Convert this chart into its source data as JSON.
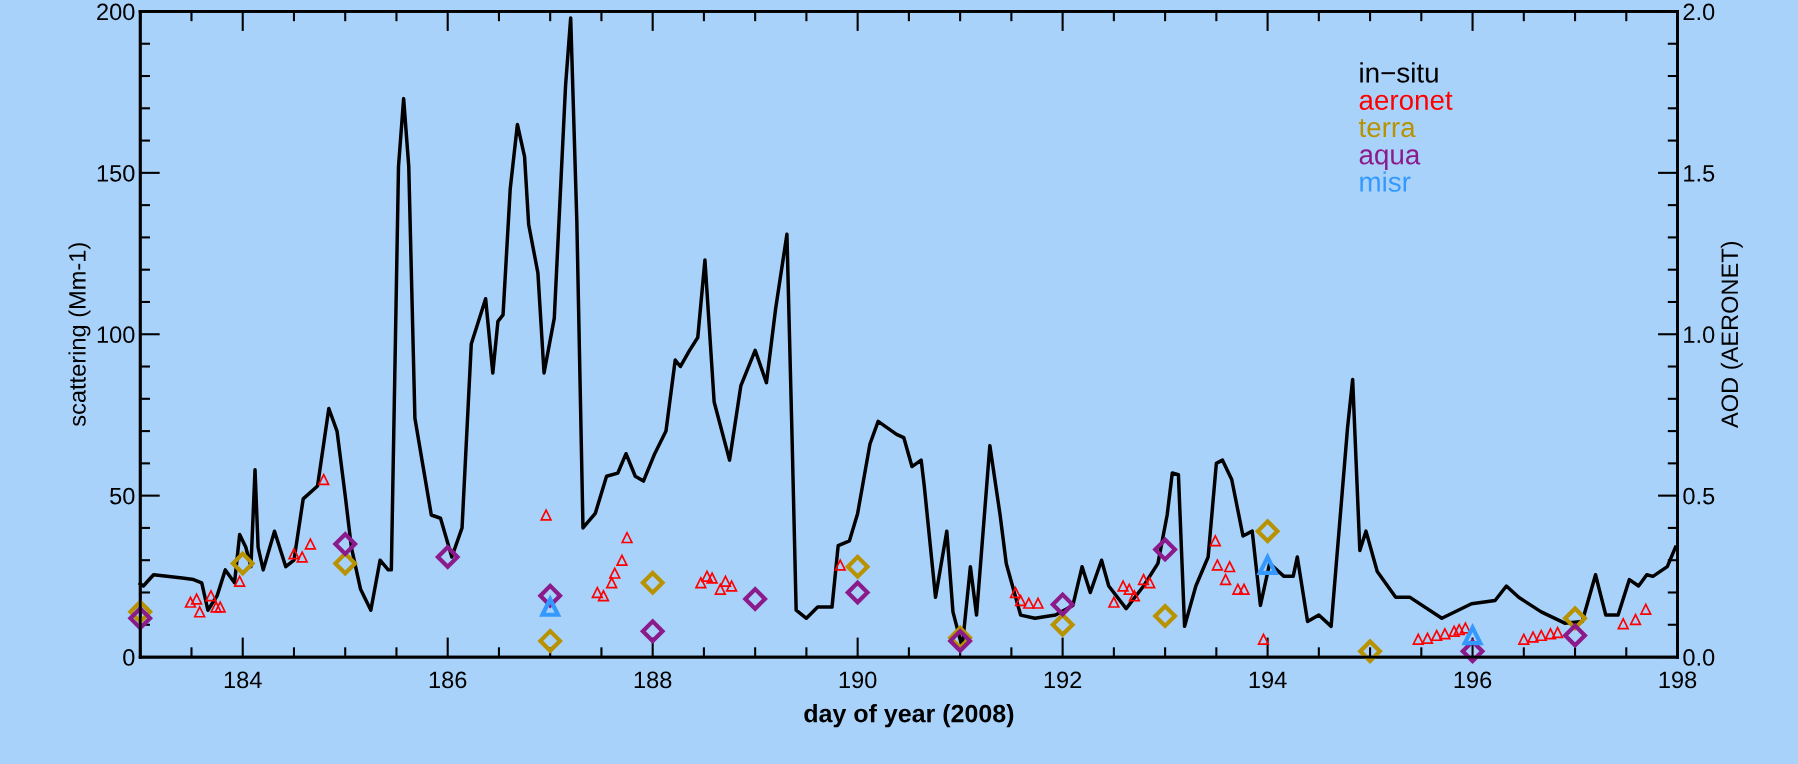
{
  "chart_data": {
    "type": "line",
    "xlabel": "day of year (2008)",
    "ylabel": "scattering (Mm-1)",
    "y2label": "AOD (AERONET)",
    "xlim": [
      183,
      198
    ],
    "xticks": [
      184,
      186,
      188,
      190,
      192,
      194,
      196,
      198
    ],
    "ylim": [
      0,
      200
    ],
    "yticks": [
      0,
      50,
      100,
      150,
      200
    ],
    "y2lim": [
      0,
      2
    ],
    "y2ticks": [
      {
        "value": 0,
        "label": "0.0"
      },
      {
        "value": 0.5,
        "label": "0.5"
      },
      {
        "value": 1,
        "label": "1.0"
      },
      {
        "value": 1.5,
        "label": "1.5"
      },
      {
        "value": 2,
        "label": "2.0"
      }
    ],
    "legend": "top right",
    "grid": false,
    "series": [
      {
        "name": "in−situ",
        "color": "#000000",
        "marker": "none",
        "line_style": "solid",
        "x": [
          183.0,
          183.03,
          183.13,
          183.41,
          183.52,
          183.6,
          183.66,
          183.75,
          183.83,
          183.92,
          183.97,
          184.03,
          184.08,
          184.12,
          184.15,
          184.2,
          184.31,
          184.42,
          184.5,
          184.59,
          184.73,
          184.84,
          184.92,
          185.0,
          185.06,
          185.15,
          185.25,
          185.34,
          185.42,
          185.45,
          185.52,
          185.57,
          185.62,
          185.68,
          185.76,
          185.84,
          185.93,
          186.04,
          186.14,
          186.23,
          186.37,
          186.44,
          186.49,
          186.54,
          186.61,
          186.68,
          186.75,
          186.79,
          186.88,
          186.94,
          187.04,
          187.15,
          187.2,
          187.26,
          187.32,
          187.44,
          187.55,
          187.66,
          187.74,
          187.83,
          187.91,
          188.02,
          188.13,
          188.22,
          188.27,
          188.36,
          188.44,
          188.51,
          188.6,
          188.75,
          188.86,
          189.0,
          189.11,
          189.2,
          189.31,
          189.36,
          189.4,
          189.5,
          189.61,
          189.75,
          189.81,
          189.92,
          190.0,
          190.12,
          190.2,
          190.38,
          190.45,
          190.53,
          190.62,
          190.65,
          190.76,
          190.87,
          190.93,
          191.02,
          191.1,
          191.16,
          191.29,
          191.39,
          191.45,
          191.59,
          191.73,
          191.93,
          192.1,
          192.19,
          192.27,
          192.38,
          192.45,
          192.62,
          192.79,
          192.93,
          193.02,
          193.07,
          193.13,
          193.19,
          193.3,
          193.42,
          193.5,
          193.56,
          193.65,
          193.76,
          193.85,
          193.93,
          194.02,
          194.16,
          194.25,
          194.29,
          194.39,
          194.5,
          194.62,
          194.78,
          194.83,
          194.9,
          194.96,
          195.07,
          195.25,
          195.39,
          195.7,
          195.99,
          196.22,
          196.33,
          196.45,
          196.67,
          196.9,
          197.07,
          197.2,
          197.3,
          197.42,
          197.53,
          197.62,
          197.7,
          197.76,
          197.9,
          197.98
        ],
        "values": [
          22.7,
          22,
          25.5,
          24.5,
          24,
          23,
          14.5,
          19,
          27,
          23,
          38,
          34,
          28,
          58,
          34,
          27,
          39,
          28,
          30,
          49,
          53,
          77,
          70,
          50,
          34,
          21,
          14.5,
          30,
          27,
          27,
          152,
          173,
          152,
          74,
          59,
          44,
          43,
          31,
          40,
          97,
          111,
          88,
          104,
          106,
          145,
          165,
          155,
          134,
          119,
          88,
          105,
          177,
          198,
          135,
          40,
          44.5,
          56,
          57,
          63,
          56,
          54.5,
          63,
          70,
          92,
          90,
          95,
          99,
          123,
          79,
          61,
          84,
          95,
          85,
          108,
          131,
          68,
          14.5,
          12,
          15.5,
          15.5,
          34.5,
          36,
          44.5,
          66,
          73,
          69,
          68,
          59,
          61,
          53,
          18.5,
          39,
          14,
          3,
          28,
          13,
          65.5,
          44,
          29,
          13,
          12,
          13,
          16,
          28,
          20,
          30,
          22,
          15,
          22,
          29,
          44,
          57,
          56.5,
          9.5,
          22,
          31,
          60,
          61,
          55,
          37.5,
          39,
          16,
          29,
          25,
          25,
          31,
          11,
          13,
          9.5,
          71,
          86,
          33,
          39,
          26.5,
          18.5,
          18.5,
          12,
          16.5,
          17.5,
          22,
          18.5,
          14,
          10.5,
          11,
          25.5,
          13,
          13,
          24,
          22,
          25.5,
          25,
          28,
          34
        ]
      },
      {
        "name": "aeronet",
        "type": "scatter",
        "axis": "y2",
        "color": "#ff0000",
        "marker": "triangle",
        "x": [
          183.49,
          183.55,
          183.58,
          183.69,
          183.74,
          183.78,
          183.97,
          184.5,
          184.58,
          184.66,
          184.79,
          185.0,
          186.96,
          187.46,
          187.52,
          187.6,
          187.63,
          187.7,
          187.75,
          188.47,
          188.53,
          188.58,
          188.66,
          188.71,
          188.77,
          189.83,
          191.54,
          191.59,
          191.67,
          191.76,
          192.5,
          192.59,
          192.65,
          192.7,
          192.79,
          192.85,
          193.49,
          193.51,
          193.59,
          193.63,
          193.71,
          193.77,
          193.96,
          195.47,
          195.56,
          195.65,
          195.73,
          195.82,
          195.87,
          195.93,
          196.5,
          196.59,
          196.67,
          196.76,
          196.83,
          197.47,
          197.59,
          197.69
        ],
        "values": [
          0.17,
          0.18,
          0.14,
          0.19,
          0.155,
          0.155,
          0.235,
          0.32,
          0.31,
          0.35,
          0.55,
          null,
          0.44,
          0.2,
          0.19,
          0.23,
          0.26,
          0.3,
          0.37,
          0.23,
          0.25,
          0.245,
          0.21,
          0.235,
          0.22,
          0.285,
          0.2,
          0.175,
          0.167,
          0.167,
          0.17,
          0.22,
          0.21,
          0.19,
          0.24,
          0.23,
          0.36,
          0.285,
          0.24,
          0.28,
          0.21,
          0.21,
          0.055,
          0.055,
          0.058,
          0.067,
          0.072,
          0.08,
          0.085,
          0.09,
          0.055,
          0.062,
          0.067,
          0.072,
          0.076,
          0.103,
          0.116,
          0.148
        ]
      },
      {
        "name": "terra",
        "type": "scatter",
        "axis": "y2",
        "color": "#b89200",
        "marker": "diamond",
        "x": [
          183,
          184,
          185,
          187,
          188,
          190,
          191,
          192,
          193,
          194,
          195,
          197
        ],
        "values": [
          0.14,
          0.29,
          0.29,
          0.05,
          0.23,
          0.28,
          0.06,
          0.1,
          0.127,
          0.39,
          0.018,
          0.12
        ]
      },
      {
        "name": "aqua",
        "type": "scatter",
        "axis": "y2",
        "color": "#8b1a8b",
        "marker": "diamond",
        "x": [
          183,
          185,
          186,
          187,
          188,
          189,
          190,
          191,
          192,
          193,
          196,
          197
        ],
        "values": [
          0.12,
          0.35,
          0.31,
          0.19,
          0.08,
          0.18,
          0.2,
          0.05,
          0.163,
          0.333,
          0.018,
          0.067
        ]
      },
      {
        "name": "misr",
        "type": "scatter",
        "axis": "y2",
        "color": "#3399ff",
        "marker": "triangle",
        "x": [
          187,
          194,
          196
        ],
        "values": [
          0.155,
          0.285,
          0.067
        ]
      }
    ]
  }
}
